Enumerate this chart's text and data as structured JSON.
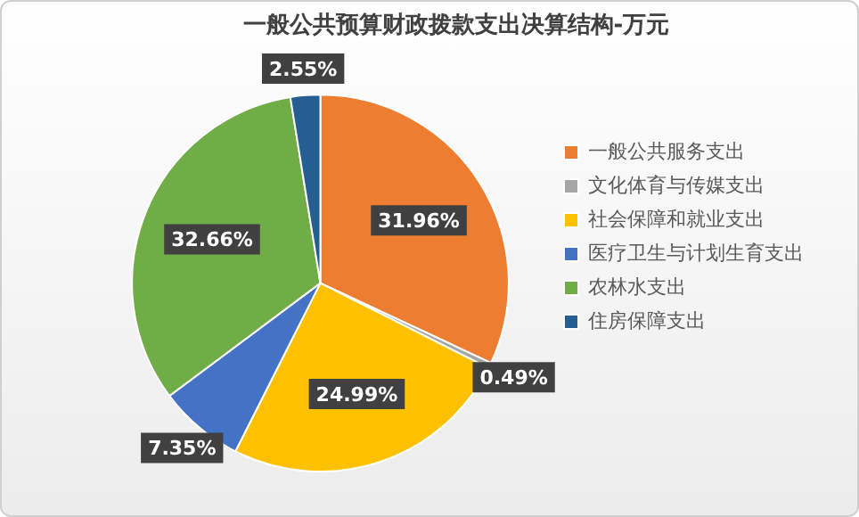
{
  "chart_data": {
    "type": "pie",
    "title": "一般公共预算财政拨款支出决算结构-万元",
    "categories": [
      "一般公共服务支出",
      "文化体育与传媒支出",
      "社会保障和就业支出",
      "医疗卫生与计划生育支出",
      "农林水支出",
      "住房保障支出"
    ],
    "values": [
      31.96,
      0.49,
      24.99,
      7.35,
      32.66,
      2.55
    ],
    "colors": [
      "#ed7d31",
      "#a5a5a5",
      "#ffc000",
      "#4472c4",
      "#70ad47",
      "#255e91"
    ],
    "value_labels": [
      "31.96%",
      "0.49%",
      "24.99%",
      "7.35%",
      "32.66%",
      "2.55%"
    ],
    "legend": "right"
  }
}
